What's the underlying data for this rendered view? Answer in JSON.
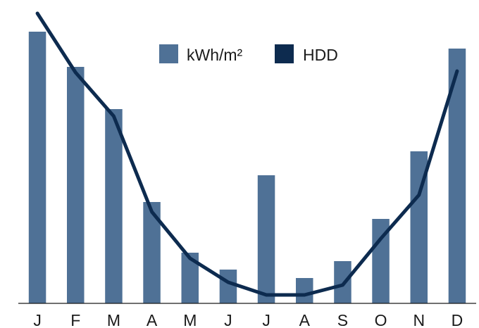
{
  "chart_data": {
    "type": "bar",
    "categories": [
      "J",
      "F",
      "M",
      "A",
      "M",
      "J",
      "J",
      "A",
      "S",
      "O",
      "N",
      "D"
    ],
    "ylim": [
      0,
      100
    ],
    "grid": false,
    "legend_position": "top-center",
    "series": [
      {
        "name": "kWh/m²",
        "type": "bar",
        "color": "#4f7196",
        "values": [
          96.5,
          84,
          69,
          36,
          18,
          12,
          45.5,
          9,
          15,
          30,
          54,
          90.5
        ]
      },
      {
        "name": "HDD",
        "type": "line",
        "color": "#0d2b4f",
        "values": [
          103,
          82,
          66.5,
          32.5,
          16,
          7.5,
          3,
          3,
          6.5,
          23,
          38.5,
          82.5
        ]
      }
    ]
  }
}
